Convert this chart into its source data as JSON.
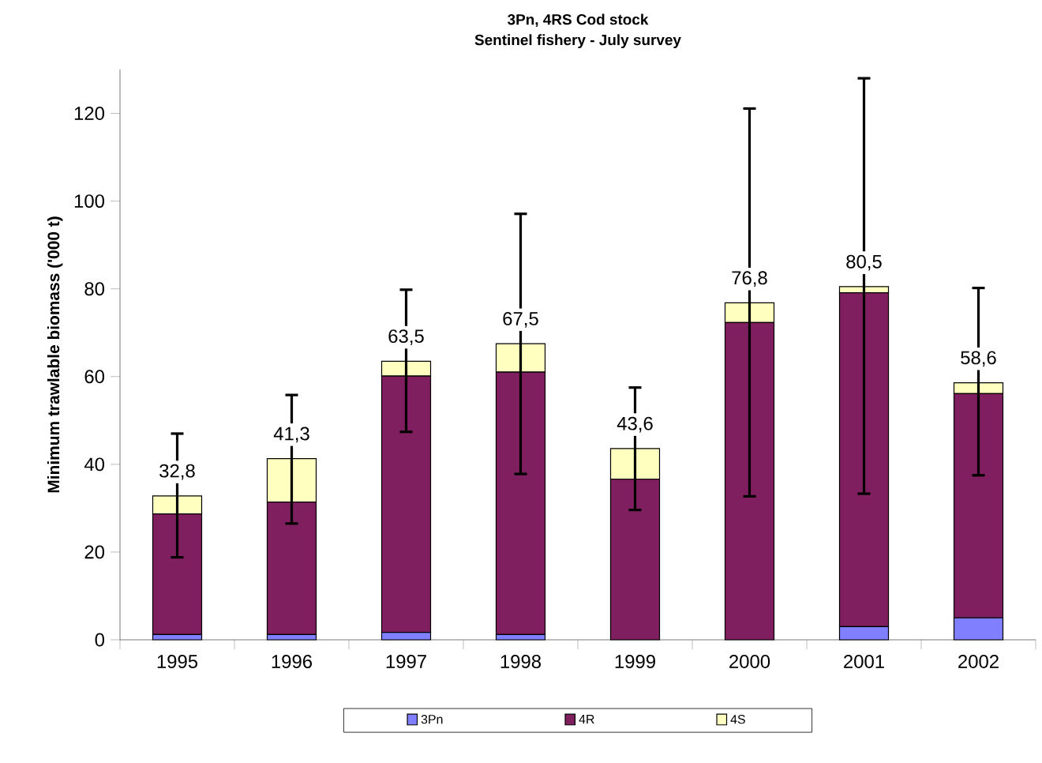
{
  "chart_data": {
    "type": "bar",
    "title": "3Pn, 4RS Cod stock",
    "subtitle": "Sentinel fishery - July survey",
    "ylabel": "Minimum trawlable biomass ('000 t)",
    "categories": [
      "1995",
      "1996",
      "1997",
      "1998",
      "1999",
      "2000",
      "2001",
      "2002"
    ],
    "stacked": true,
    "ylim": [
      0,
      130
    ],
    "yticks": [
      0,
      20,
      40,
      60,
      80,
      100,
      120
    ],
    "legend": "bottom",
    "series": [
      {
        "name": "3Pn",
        "color": "#8080ff",
        "values": [
          1.2,
          1.2,
          1.7,
          1.2,
          null,
          null,
          3.0,
          5.0
        ]
      },
      {
        "name": "4R",
        "color": "#7f1f5f",
        "values": [
          27.5,
          30.2,
          58.4,
          59.8,
          36.6,
          72.3,
          76.1,
          51.1
        ]
      },
      {
        "name": "4S",
        "color": "#ffffc0",
        "values": [
          4.1,
          9.9,
          3.4,
          6.5,
          7.0,
          4.5,
          1.4,
          2.5
        ],
        "errors": [
          [
            18.8,
            47
          ],
          [
            26.5,
            55.8
          ],
          [
            47.4,
            79.8
          ],
          [
            37.8,
            97.1
          ],
          [
            29.6,
            57.5
          ],
          [
            32.7,
            121.1
          ],
          [
            33.3,
            128
          ],
          [
            37.5,
            80.2
          ]
        ]
      }
    ],
    "totals": [
      "32,8",
      "41,3",
      "63,5",
      "67,5",
      "43,6",
      "76,8",
      "80,5",
      "58,6"
    ]
  }
}
